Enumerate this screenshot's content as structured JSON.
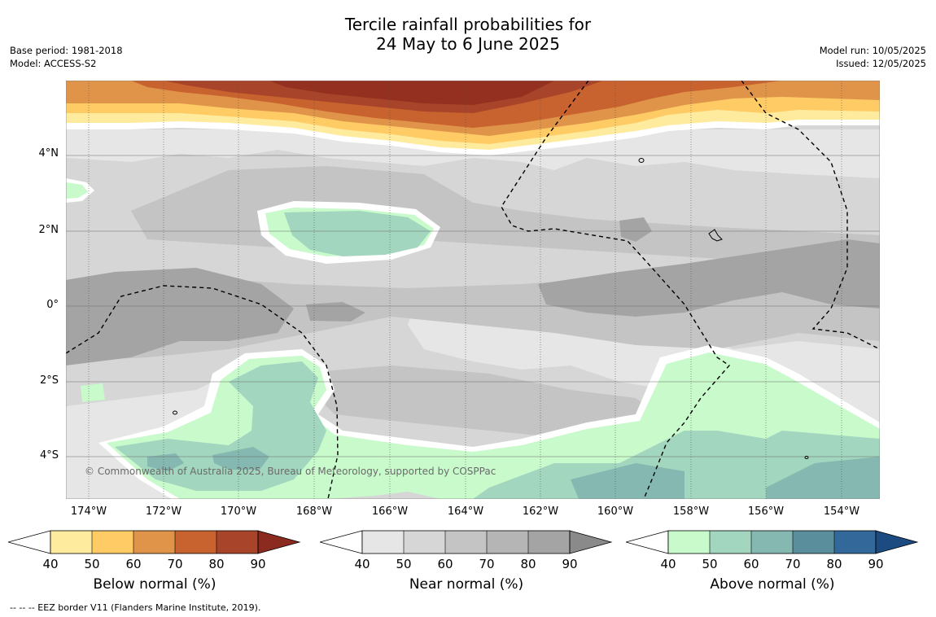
{
  "title": {
    "line1": "Tercile rainfall probabilities for",
    "line2": "24 May to 6 June 2025"
  },
  "meta_left": {
    "base_period": "Base period: 1981-2018",
    "model": "Model: ACCESS-S2"
  },
  "meta_right": {
    "model_run": "Model run: 10/05/2025",
    "issued": "Issued: 12/05/2025"
  },
  "map": {
    "lat_labels": [
      "4°N",
      "2°N",
      "0°",
      "2°S",
      "4°S"
    ],
    "lon_labels": [
      "174°W",
      "172°W",
      "170°W",
      "168°W",
      "166°W",
      "164°W",
      "162°W",
      "160°W",
      "158°W",
      "156°W",
      "154°W"
    ],
    "copyright": "© Commonwealth of Australia 2025, Bureau of Meteorology, supported by COSPPac"
  },
  "colorbars": [
    {
      "title": "Below normal (%)",
      "ticks": [
        "40",
        "50",
        "60",
        "70",
        "80",
        "90"
      ],
      "colors": [
        "#ffffff",
        "#ffeb9e",
        "#fecb65",
        "#e0944a",
        "#c8622f",
        "#a8442a",
        "#8b2a1e"
      ]
    },
    {
      "title": "Near normal (%)",
      "ticks": [
        "40",
        "50",
        "60",
        "70",
        "80",
        "90"
      ],
      "colors": [
        "#ffffff",
        "#e6e6e6",
        "#d6d6d6",
        "#c4c4c4",
        "#b5b5b5",
        "#a4a4a4",
        "#8a8a8a"
      ]
    },
    {
      "title": "Above normal (%)",
      "ticks": [
        "40",
        "50",
        "60",
        "70",
        "80",
        "90"
      ],
      "colors": [
        "#ffffff",
        "#c8facb",
        "#a2d6bf",
        "#84b8b0",
        "#5b8e9d",
        "#33689b",
        "#1c4b82"
      ]
    }
  ],
  "footnote": "-- -- -- EEZ border V11 (Flanders Marine Institute, 2019)."
}
